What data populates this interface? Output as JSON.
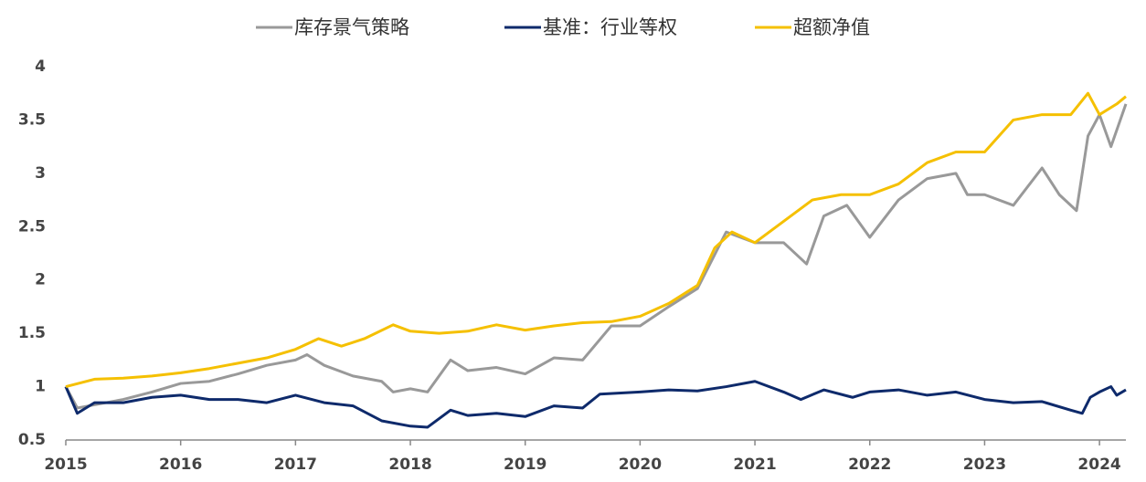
{
  "chart_data": {
    "type": "line",
    "xlim": [
      2015,
      2024.23
    ],
    "xticks": [
      2015,
      2016,
      2017,
      2018,
      2019,
      2020,
      2021,
      2022,
      2023,
      2024
    ],
    "ylim": [
      0.5,
      4
    ],
    "yticks": [
      0.5,
      1,
      1.5,
      2,
      2.5,
      3,
      3.5,
      4
    ],
    "grid": false,
    "legend": "top",
    "series": [
      {
        "name": "库存景气策略",
        "color": "#999999",
        "x": [
          2015,
          2015.1,
          2015.25,
          2015.5,
          2015.75,
          2016,
          2016.25,
          2016.5,
          2016.75,
          2017,
          2017.1,
          2017.25,
          2017.5,
          2017.75,
          2017.85,
          2018.0,
          2018.15,
          2018.35,
          2018.5,
          2018.75,
          2019.0,
          2019.25,
          2019.5,
          2019.75,
          2020.0,
          2020.25,
          2020.5,
          2020.75,
          2021.0,
          2021.25,
          2021.45,
          2021.6,
          2021.8,
          2022.0,
          2022.25,
          2022.5,
          2022.75,
          2022.85,
          2023.0,
          2023.25,
          2023.5,
          2023.65,
          2023.8,
          2023.9,
          2024.0,
          2024.1,
          2024.23
        ],
        "values": [
          1.0,
          0.8,
          0.83,
          0.88,
          0.95,
          1.03,
          1.05,
          1.12,
          1.2,
          1.25,
          1.3,
          1.2,
          1.1,
          1.05,
          0.95,
          0.98,
          0.95,
          1.25,
          1.15,
          1.18,
          1.12,
          1.27,
          1.25,
          1.57,
          1.57,
          1.75,
          1.92,
          2.45,
          2.35,
          2.35,
          2.15,
          2.6,
          2.7,
          2.4,
          2.75,
          2.95,
          3.0,
          2.8,
          2.8,
          2.7,
          3.05,
          2.8,
          2.65,
          3.35,
          3.55,
          3.25,
          3.65
        ]
      },
      {
        "name": "基准：行业等权",
        "color": "#0e2a6b",
        "x": [
          2015,
          2015.1,
          2015.25,
          2015.5,
          2015.75,
          2016,
          2016.25,
          2016.5,
          2016.75,
          2017,
          2017.25,
          2017.5,
          2017.75,
          2018,
          2018.15,
          2018.35,
          2018.5,
          2018.75,
          2019,
          2019.25,
          2019.5,
          2019.65,
          2020,
          2020.25,
          2020.5,
          2020.75,
          2021,
          2021.25,
          2021.4,
          2021.6,
          2021.85,
          2022,
          2022.25,
          2022.5,
          2022.75,
          2023,
          2023.25,
          2023.5,
          2023.75,
          2023.85,
          2023.92,
          2024.0,
          2024.1,
          2024.15,
          2024.23
        ],
        "values": [
          1.0,
          0.75,
          0.85,
          0.85,
          0.9,
          0.92,
          0.88,
          0.88,
          0.85,
          0.92,
          0.85,
          0.82,
          0.68,
          0.63,
          0.62,
          0.78,
          0.73,
          0.75,
          0.72,
          0.82,
          0.8,
          0.93,
          0.95,
          0.97,
          0.96,
          1.0,
          1.05,
          0.95,
          0.88,
          0.97,
          0.9,
          0.95,
          0.97,
          0.92,
          0.95,
          0.88,
          0.85,
          0.86,
          0.78,
          0.75,
          0.9,
          0.95,
          1.0,
          0.92,
          0.97
        ]
      },
      {
        "name": "超额净值",
        "color": "#f5c000",
        "x": [
          2015,
          2015.25,
          2015.5,
          2015.75,
          2016,
          2016.25,
          2016.5,
          2016.75,
          2017,
          2017.2,
          2017.4,
          2017.6,
          2017.85,
          2018,
          2018.25,
          2018.5,
          2018.75,
          2019,
          2019.25,
          2019.5,
          2019.75,
          2020,
          2020.25,
          2020.5,
          2020.65,
          2020.8,
          2021,
          2021.25,
          2021.5,
          2021.75,
          2022,
          2022.25,
          2022.5,
          2022.75,
          2023,
          2023.25,
          2023.5,
          2023.75,
          2023.9,
          2024,
          2024.15,
          2024.23
        ],
        "values": [
          1.0,
          1.07,
          1.08,
          1.1,
          1.13,
          1.17,
          1.22,
          1.27,
          1.35,
          1.45,
          1.38,
          1.45,
          1.58,
          1.52,
          1.5,
          1.52,
          1.58,
          1.53,
          1.57,
          1.6,
          1.61,
          1.66,
          1.78,
          1.95,
          2.3,
          2.45,
          2.35,
          2.55,
          2.75,
          2.8,
          2.8,
          2.9,
          3.1,
          3.2,
          3.2,
          3.5,
          3.55,
          3.55,
          3.75,
          3.55,
          3.65,
          3.72
        ]
      }
    ]
  }
}
